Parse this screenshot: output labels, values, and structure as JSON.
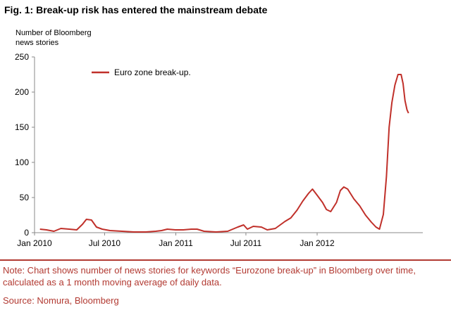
{
  "figure": {
    "title": "Fig. 1: Break-up risk has entered the mainstream debate",
    "note": "Note: Chart shows number of news stories for keywords “Eurozone break-up” in Bloomberg over time, calculated as a 1 month moving average of daily data.",
    "source": "Source: Nomura, Bloomberg"
  },
  "chart_data": {
    "type": "line",
    "title": "",
    "ylabel_lines": [
      "Number of Bloomberg",
      "news stories"
    ],
    "xlabel": "",
    "ylim": [
      0,
      250
    ],
    "y_ticks": [
      0,
      50,
      100,
      150,
      200,
      250
    ],
    "x_ticks": [
      "Jan 2010",
      "Jul 2010",
      "Jan 2011",
      "Jul 2011",
      "Jan 2012"
    ],
    "x_range": [
      "2010-01-01",
      "2012-09-30"
    ],
    "grid": false,
    "legend_position": "top-left",
    "series": [
      {
        "name": "Euro zone break-up.",
        "color": "#c0302a",
        "points": [
          [
            "2010-01-15",
            5
          ],
          [
            "2010-02-01",
            4
          ],
          [
            "2010-02-20",
            2
          ],
          [
            "2010-03-10",
            6
          ],
          [
            "2010-04-01",
            5
          ],
          [
            "2010-04-20",
            4
          ],
          [
            "2010-05-05",
            12
          ],
          [
            "2010-05-15",
            19
          ],
          [
            "2010-05-28",
            18
          ],
          [
            "2010-06-10",
            8
          ],
          [
            "2010-06-25",
            5
          ],
          [
            "2010-07-15",
            3
          ],
          [
            "2010-08-15",
            2
          ],
          [
            "2010-09-15",
            1
          ],
          [
            "2010-10-15",
            1
          ],
          [
            "2010-11-10",
            2
          ],
          [
            "2010-11-25",
            3
          ],
          [
            "2010-12-10",
            5
          ],
          [
            "2010-12-31",
            4
          ],
          [
            "2011-01-20",
            4
          ],
          [
            "2011-02-10",
            5
          ],
          [
            "2011-02-25",
            5
          ],
          [
            "2011-03-15",
            2
          ],
          [
            "2011-04-15",
            1
          ],
          [
            "2011-05-15",
            2
          ],
          [
            "2011-06-10",
            8
          ],
          [
            "2011-06-25",
            11
          ],
          [
            "2011-07-05",
            5
          ],
          [
            "2011-07-20",
            9
          ],
          [
            "2011-08-10",
            8
          ],
          [
            "2011-08-25",
            4
          ],
          [
            "2011-09-15",
            6
          ],
          [
            "2011-10-10",
            16
          ],
          [
            "2011-10-25",
            21
          ],
          [
            "2011-11-10",
            32
          ],
          [
            "2011-11-25",
            45
          ],
          [
            "2011-12-10",
            56
          ],
          [
            "2011-12-20",
            62
          ],
          [
            "2011-12-31",
            54
          ],
          [
            "2012-01-15",
            43
          ],
          [
            "2012-01-25",
            33
          ],
          [
            "2012-02-05",
            30
          ],
          [
            "2012-02-20",
            43
          ],
          [
            "2012-03-01",
            60
          ],
          [
            "2012-03-10",
            65
          ],
          [
            "2012-03-20",
            62
          ],
          [
            "2012-04-05",
            48
          ],
          [
            "2012-04-20",
            38
          ],
          [
            "2012-05-05",
            25
          ],
          [
            "2012-05-20",
            15
          ],
          [
            "2012-06-01",
            8
          ],
          [
            "2012-06-10",
            5
          ],
          [
            "2012-06-20",
            26
          ],
          [
            "2012-06-28",
            80
          ],
          [
            "2012-07-05",
            150
          ],
          [
            "2012-07-12",
            185
          ],
          [
            "2012-07-20",
            210
          ],
          [
            "2012-07-28",
            225
          ],
          [
            "2012-08-05",
            225
          ],
          [
            "2012-08-10",
            212
          ],
          [
            "2012-08-15",
            188
          ],
          [
            "2012-08-20",
            175
          ],
          [
            "2012-08-24",
            170
          ]
        ]
      }
    ]
  }
}
